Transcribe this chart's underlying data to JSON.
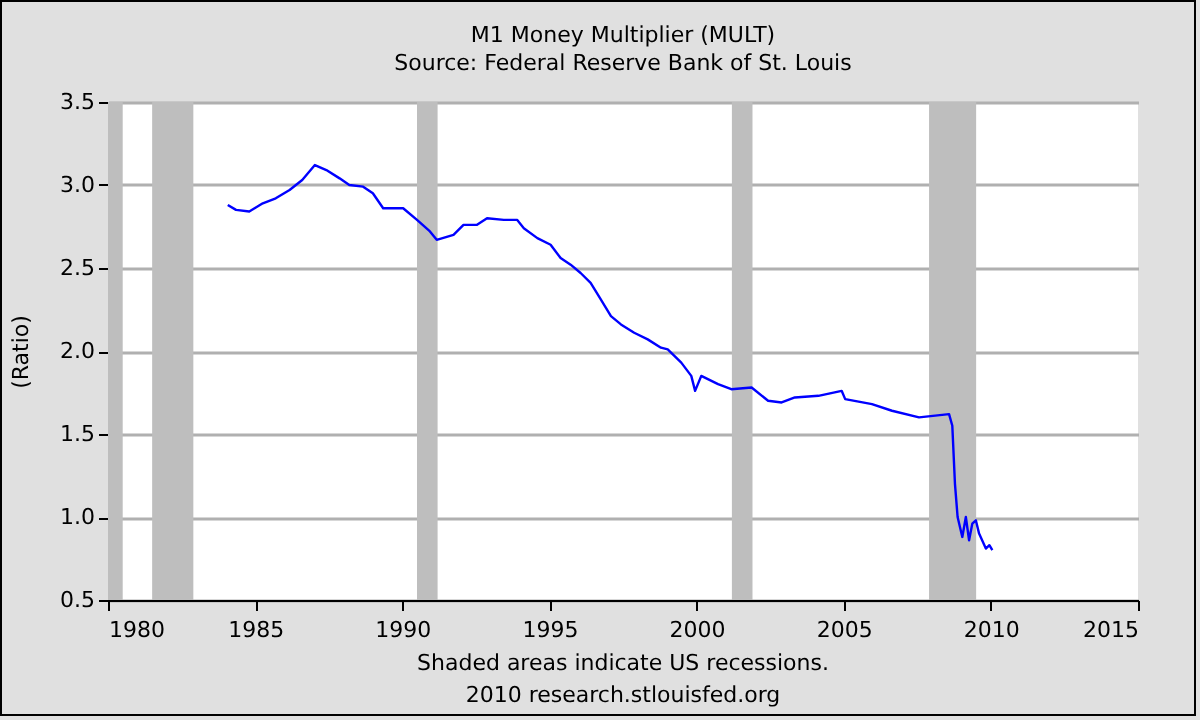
{
  "chart_data": {
    "type": "line",
    "title": "M1 Money Multiplier (MULT)",
    "subtitle": "Source: Federal Reserve Bank of St. Louis",
    "ylabel": "(Ratio)",
    "annotations": [
      "Shaded areas indicate US recessions.",
      "2010 research.stlouisfed.org"
    ],
    "xlim": [
      1980,
      2015
    ],
    "xticks": [
      1980,
      1985,
      1990,
      1995,
      2000,
      2005,
      2010,
      2015
    ],
    "ylim": [
      0.5,
      3.5
    ],
    "yticks": [
      0.5,
      {
        "value": 1,
        "label": "1.0"
      },
      1.5,
      {
        "value": 2,
        "label": "2.0"
      },
      2.5,
      {
        "value": 3,
        "label": "3.0"
      },
      3.5
    ],
    "grid": "y",
    "line_style": "solid",
    "bands": [
      {
        "axis": "x",
        "from": 1980.0,
        "to": 1980.5,
        "color": "#bebebe"
      },
      {
        "axis": "x",
        "from": 1981.5,
        "to": 1982.9,
        "color": "#bebebe"
      },
      {
        "axis": "x",
        "from": 1990.5,
        "to": 1991.2,
        "color": "#bebebe"
      },
      {
        "axis": "x",
        "from": 2001.2,
        "to": 2001.9,
        "color": "#bebebe"
      },
      {
        "axis": "x",
        "from": 2007.9,
        "to": 2009.5,
        "color": "#bebebe"
      }
    ],
    "series": [
      {
        "color": "#0000ff",
        "x": [
          1984.07,
          1984.35,
          1984.8,
          1985.26,
          1985.7,
          1986.17,
          1986.6,
          1987.03,
          1987.42,
          1987.87,
          1988.2,
          1988.67,
          1989.0,
          1989.35,
          1990.03,
          1990.5,
          1990.94,
          1991.17,
          1991.74,
          1992.08,
          1992.54,
          1992.88,
          1993.45,
          1993.9,
          1994.13,
          1994.59,
          1995.04,
          1995.38,
          1995.72,
          1996.06,
          1996.4,
          1996.75,
          1997.09,
          1997.43,
          1997.88,
          1998.34,
          1998.79,
          1999.02,
          1999.48,
          1999.82,
          1999.95,
          2000.16,
          2000.73,
          2001.18,
          2001.87,
          2002.43,
          2002.89,
          2003.34,
          2004.14,
          2004.93,
          2005.05,
          2005.96,
          2006.64,
          2007.56,
          2008.58,
          2008.69,
          2008.78,
          2008.87,
          2009.03,
          2009.15,
          2009.26,
          2009.37,
          2009.49,
          2009.6,
          2009.83,
          2009.95,
          2010.05
        ],
        "values": [
          2.88,
          2.85,
          2.84,
          2.89,
          2.92,
          2.97,
          3.03,
          3.12,
          3.09,
          3.04,
          3.0,
          2.99,
          2.95,
          2.86,
          2.86,
          2.79,
          2.72,
          2.67,
          2.7,
          2.76,
          2.76,
          2.8,
          2.79,
          2.79,
          2.74,
          2.68,
          2.64,
          2.56,
          2.52,
          2.47,
          2.41,
          2.31,
          2.21,
          2.16,
          2.11,
          2.07,
          2.02,
          2.01,
          1.93,
          1.85,
          1.76,
          1.85,
          1.8,
          1.77,
          1.78,
          1.7,
          1.69,
          1.72,
          1.73,
          1.76,
          1.71,
          1.68,
          1.64,
          1.6,
          1.62,
          1.55,
          1.2,
          1.0,
          0.88,
          1.0,
          0.86,
          0.96,
          0.98,
          0.9,
          0.81,
          0.83,
          0.8
        ]
      }
    ]
  }
}
